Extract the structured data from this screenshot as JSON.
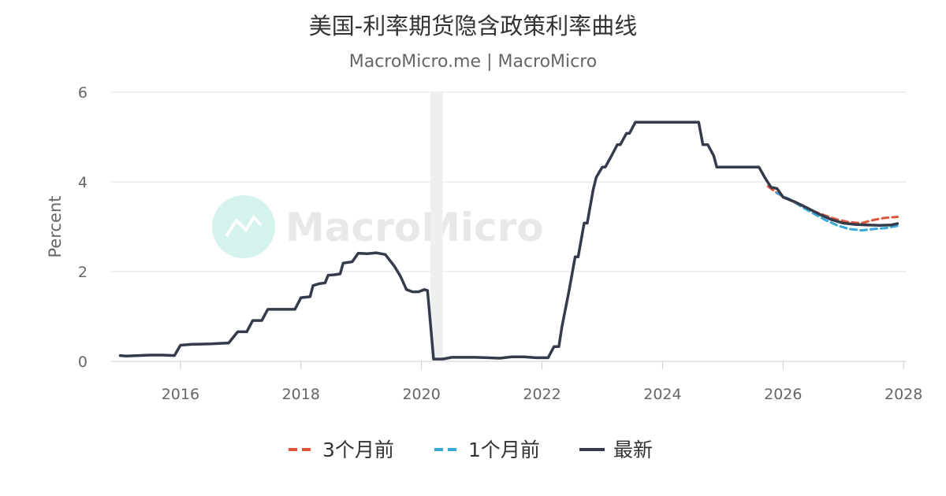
{
  "chart_data": {
    "type": "line",
    "title": "美国-利率期货隐含政策利率曲线",
    "subtitle": "MacroMicro.me | MacroMicro",
    "ylabel": "Percent",
    "xlim": [
      2014.85,
      2028.05
    ],
    "ylim": [
      0,
      6
    ],
    "yticks": [
      "0",
      "2",
      "4",
      "6"
    ],
    "xticks": [
      "2016",
      "2018",
      "2020",
      "2022",
      "2024",
      "2026",
      "2028"
    ],
    "grid": "horizontal",
    "legend_position": "bottom",
    "recession_band": [
      2020.15,
      2020.35
    ],
    "watermark": "MacroMicro",
    "series": [
      {
        "name": "3个月前",
        "color": "#e0563a",
        "dash": true,
        "points": [
          [
            2025.75,
            3.9
          ],
          [
            2025.9,
            3.75
          ],
          [
            2026.1,
            3.6
          ],
          [
            2026.3,
            3.48
          ],
          [
            2026.5,
            3.35
          ],
          [
            2026.7,
            3.25
          ],
          [
            2026.9,
            3.16
          ],
          [
            2027.1,
            3.1
          ],
          [
            2027.3,
            3.08
          ],
          [
            2027.5,
            3.15
          ],
          [
            2027.7,
            3.2
          ],
          [
            2027.9,
            3.22
          ]
        ]
      },
      {
        "name": "1个月前",
        "color": "#3aa8d8",
        "dash": true,
        "points": [
          [
            2025.9,
            3.75
          ],
          [
            2026.1,
            3.62
          ],
          [
            2026.3,
            3.45
          ],
          [
            2026.5,
            3.3
          ],
          [
            2026.7,
            3.15
          ],
          [
            2026.9,
            3.03
          ],
          [
            2027.1,
            2.95
          ],
          [
            2027.3,
            2.92
          ],
          [
            2027.5,
            2.95
          ],
          [
            2027.7,
            2.97
          ],
          [
            2027.9,
            3.02
          ]
        ]
      },
      {
        "name": "最新",
        "color": "#353b4b",
        "dash": false,
        "points": [
          [
            2015.0,
            0.13
          ],
          [
            2015.1,
            0.12
          ],
          [
            2015.3,
            0.13
          ],
          [
            2015.5,
            0.14
          ],
          [
            2015.7,
            0.14
          ],
          [
            2015.9,
            0.13
          ],
          [
            2016.0,
            0.36
          ],
          [
            2016.2,
            0.38
          ],
          [
            2016.5,
            0.39
          ],
          [
            2016.8,
            0.41
          ],
          [
            2016.95,
            0.66
          ],
          [
            2017.1,
            0.66
          ],
          [
            2017.2,
            0.91
          ],
          [
            2017.35,
            0.91
          ],
          [
            2017.45,
            1.16
          ],
          [
            2017.6,
            1.16
          ],
          [
            2017.8,
            1.16
          ],
          [
            2017.9,
            1.16
          ],
          [
            2018.0,
            1.42
          ],
          [
            2018.15,
            1.44
          ],
          [
            2018.2,
            1.69
          ],
          [
            2018.3,
            1.73
          ],
          [
            2018.4,
            1.75
          ],
          [
            2018.45,
            1.92
          ],
          [
            2018.55,
            1.93
          ],
          [
            2018.65,
            1.95
          ],
          [
            2018.7,
            2.19
          ],
          [
            2018.85,
            2.22
          ],
          [
            2018.95,
            2.41
          ],
          [
            2019.1,
            2.4
          ],
          [
            2019.25,
            2.42
          ],
          [
            2019.4,
            2.38
          ],
          [
            2019.55,
            2.12
          ],
          [
            2019.65,
            1.9
          ],
          [
            2019.75,
            1.6
          ],
          [
            2019.85,
            1.55
          ],
          [
            2019.95,
            1.55
          ],
          [
            2020.05,
            1.6
          ],
          [
            2020.1,
            1.58
          ],
          [
            2020.2,
            0.05
          ],
          [
            2020.35,
            0.05
          ],
          [
            2020.5,
            0.09
          ],
          [
            2020.7,
            0.09
          ],
          [
            2020.9,
            0.09
          ],
          [
            2021.1,
            0.08
          ],
          [
            2021.3,
            0.07
          ],
          [
            2021.5,
            0.1
          ],
          [
            2021.7,
            0.1
          ],
          [
            2021.9,
            0.08
          ],
          [
            2022.1,
            0.08
          ],
          [
            2022.2,
            0.33
          ],
          [
            2022.28,
            0.33
          ],
          [
            2022.33,
            0.77
          ],
          [
            2022.45,
            1.58
          ],
          [
            2022.55,
            2.33
          ],
          [
            2022.6,
            2.33
          ],
          [
            2022.7,
            3.08
          ],
          [
            2022.75,
            3.08
          ],
          [
            2022.85,
            3.83
          ],
          [
            2022.9,
            4.1
          ],
          [
            2023.0,
            4.33
          ],
          [
            2023.05,
            4.33
          ],
          [
            2023.15,
            4.57
          ],
          [
            2023.25,
            4.83
          ],
          [
            2023.3,
            4.83
          ],
          [
            2023.4,
            5.08
          ],
          [
            2023.45,
            5.08
          ],
          [
            2023.55,
            5.33
          ],
          [
            2023.8,
            5.33
          ],
          [
            2024.0,
            5.33
          ],
          [
            2024.3,
            5.33
          ],
          [
            2024.5,
            5.33
          ],
          [
            2024.6,
            5.33
          ],
          [
            2024.67,
            4.83
          ],
          [
            2024.75,
            4.83
          ],
          [
            2024.85,
            4.58
          ],
          [
            2024.9,
            4.33
          ],
          [
            2025.1,
            4.33
          ],
          [
            2025.3,
            4.33
          ],
          [
            2025.55,
            4.33
          ],
          [
            2025.6,
            4.33
          ],
          [
            2025.7,
            4.09
          ],
          [
            2025.8,
            3.88
          ],
          [
            2025.9,
            3.85
          ],
          [
            2026.0,
            3.66
          ],
          [
            2026.2,
            3.55
          ],
          [
            2026.4,
            3.42
          ],
          [
            2026.6,
            3.28
          ],
          [
            2026.8,
            3.16
          ],
          [
            2027.0,
            3.08
          ],
          [
            2027.2,
            3.05
          ],
          [
            2027.4,
            3.04
          ],
          [
            2027.6,
            3.03
          ],
          [
            2027.8,
            3.04
          ],
          [
            2027.9,
            3.07
          ]
        ]
      }
    ]
  }
}
